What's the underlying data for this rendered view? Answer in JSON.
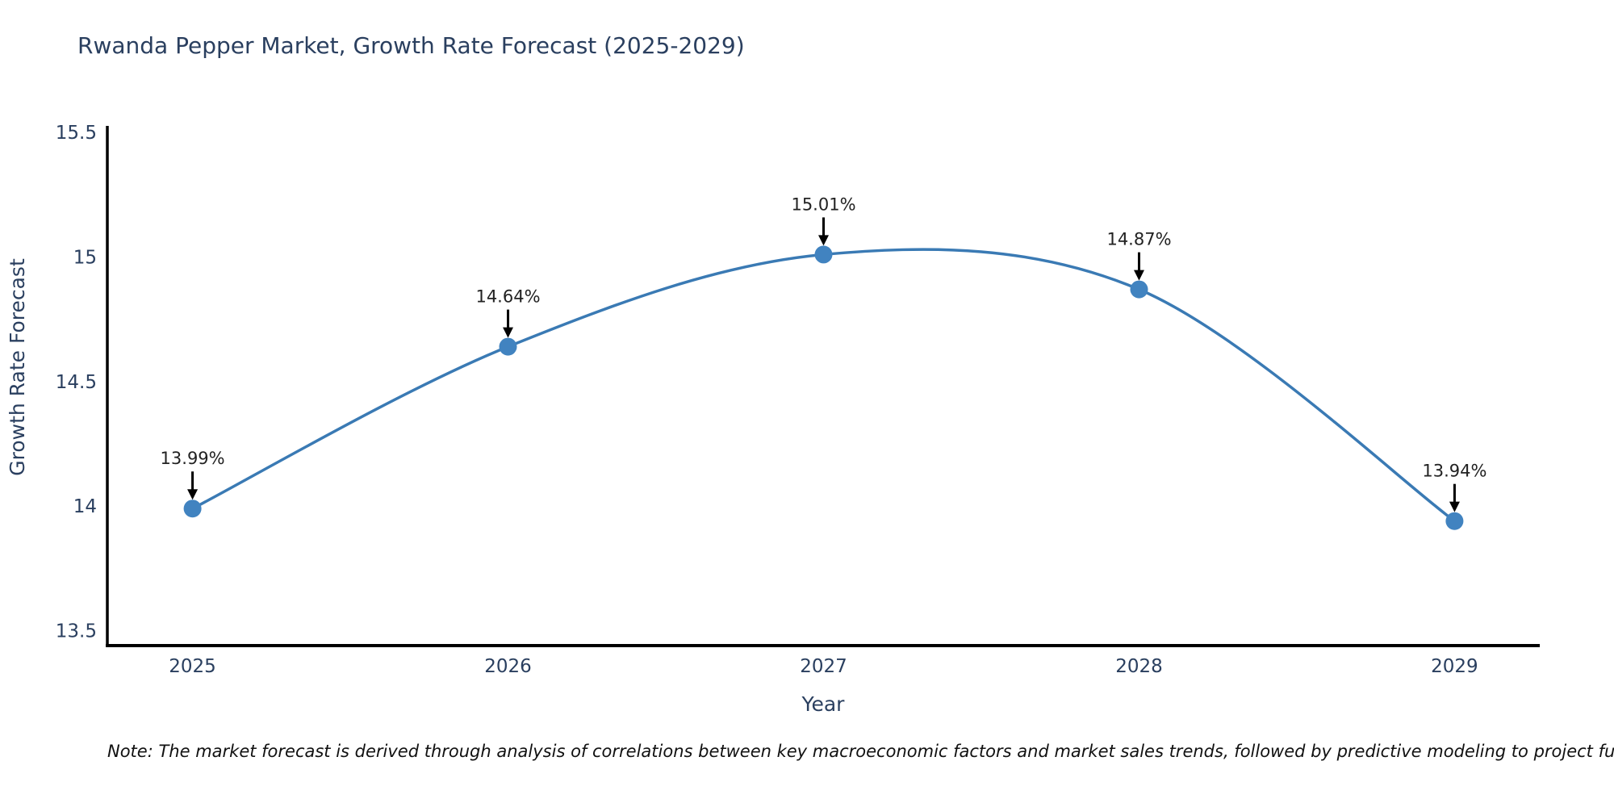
{
  "chart_data": {
    "type": "line",
    "title": "Rwanda Pepper Market, Growth Rate Forecast (2025-2029)",
    "xlabel": "Year",
    "ylabel": "Growth Rate Forecast",
    "categories": [
      "2025",
      "2026",
      "2027",
      "2028",
      "2029"
    ],
    "x": [
      2025,
      2026,
      2027,
      2028,
      2029
    ],
    "series": [
      {
        "name": "Growth Rate Forecast",
        "values": [
          13.99,
          14.64,
          15.01,
          14.87,
          13.94
        ]
      }
    ],
    "point_labels": [
      "13.99%",
      "14.64%",
      "15.01%",
      "14.87%",
      "13.94%"
    ],
    "ytick_labels": [
      "13.5",
      "14",
      "14.5",
      "15",
      "15.5"
    ],
    "ytick_values": [
      13.5,
      14.0,
      14.5,
      15.0,
      15.5
    ],
    "ylim": [
      13.44,
      15.52
    ],
    "xlim": [
      2024.73,
      2029.27
    ],
    "grid": false,
    "legend": false,
    "line_shape": "spline",
    "annotations_have_arrows": true,
    "colors": {
      "line": "#3a7ab4",
      "marker": "#4183c0",
      "arrow": "#000000",
      "axis": "#000000",
      "title_text": "#2a3f5f",
      "tick_text": "#2a3f5f",
      "annotation_text": "#222222"
    }
  },
  "note": {
    "text": "Note: The market forecast is derived through analysis of correlations between key macroeconomic factors and market sales trends, followed by predictive modeling to project future sal"
  }
}
